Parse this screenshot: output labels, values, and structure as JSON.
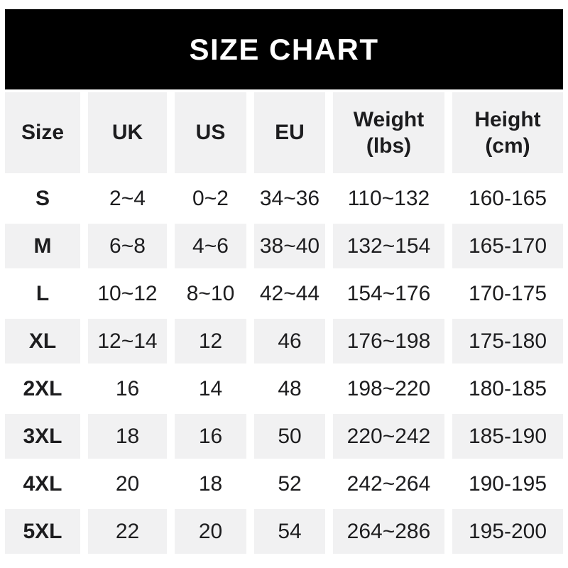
{
  "banner": {
    "title": "SIZE CHART"
  },
  "table": {
    "header": [
      {
        "label": "Size",
        "sub": ""
      },
      {
        "label": "UK",
        "sub": ""
      },
      {
        "label": "US",
        "sub": ""
      },
      {
        "label": "EU",
        "sub": ""
      },
      {
        "label": "Weight",
        "sub": "(lbs)"
      },
      {
        "label": "Height",
        "sub": "(cm)"
      }
    ]
  },
  "colors": {
    "banner_bg": "#000000",
    "banner_text": "#ffffff",
    "stripe_bg": "#f1f1f2",
    "row_bg": "#ffffff",
    "text": "#1d1d1f"
  },
  "chart_data": {
    "type": "table",
    "title": "SIZE CHART",
    "columns": [
      "Size",
      "UK",
      "US",
      "EU",
      "Weight (lbs)",
      "Height (cm)"
    ],
    "rows": [
      [
        "S",
        "2~4",
        "0~2",
        "34~36",
        "110~132",
        "160-165"
      ],
      [
        "M",
        "6~8",
        "4~6",
        "38~40",
        "132~154",
        "165-170"
      ],
      [
        "L",
        "10~12",
        "8~10",
        "42~44",
        "154~176",
        "170-175"
      ],
      [
        "XL",
        "12~14",
        "12",
        "46",
        "176~198",
        "175-180"
      ],
      [
        "2XL",
        "16",
        "14",
        "48",
        "198~220",
        "180-185"
      ],
      [
        "3XL",
        "18",
        "16",
        "50",
        "220~242",
        "185-190"
      ],
      [
        "4XL",
        "20",
        "18",
        "52",
        "242~264",
        "190-195"
      ],
      [
        "5XL",
        "22",
        "20",
        "54",
        "264~286",
        "195-200"
      ]
    ],
    "layout": {
      "striped": true,
      "stripe_rows": [
        "header",
        "M",
        "XL",
        "3XL",
        "5XL"
      ],
      "header_background": "#f1f1f2",
      "grid": false
    }
  }
}
